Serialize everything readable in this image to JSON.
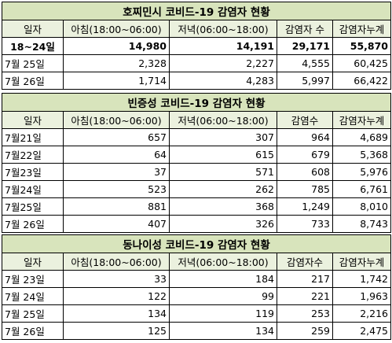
{
  "table1": {
    "title": "호찌민시 코비드-19 감염자 현황",
    "headers": [
      "일자",
      "아침(18:00~06:00)",
      "저녁(06:00~18:00)",
      "감염자 수",
      "감염자누계"
    ],
    "rows": [
      [
        "18~24일",
        "14,980",
        "14,191",
        "29,171",
        "55,870"
      ],
      [
        "7월 25일",
        "2,328",
        "2,227",
        "4,555",
        "60,425"
      ],
      [
        "7월 26일",
        "1,714",
        "4,283",
        "5,997",
        "66,422"
      ]
    ]
  },
  "table2": {
    "title": "빈증성 코비드-19 감염자 현황",
    "headers": [
      "일자",
      "아침(18:00~06:00)",
      "저녁(06:00~18:00)",
      "감염수",
      "감염자누계"
    ],
    "rows": [
      [
        "7월21일",
        "657",
        "307",
        "964",
        "4,689"
      ],
      [
        "7월22일",
        "64",
        "615",
        "679",
        "5,368"
      ],
      [
        "7월23일",
        "37",
        "571",
        "608",
        "5,976"
      ],
      [
        "7월24일",
        "523",
        "262",
        "785",
        "6,761"
      ],
      [
        "7월25일",
        "881",
        "368",
        "1,249",
        "8,010"
      ],
      [
        "7월 26일",
        "407",
        "326",
        "733",
        "8,743"
      ]
    ]
  },
  "table3": {
    "title": "동나이성 코비드-19 감염자 현황",
    "headers": [
      "일자",
      "아침(18:00~06:00)",
      "저녁(06:00~18:00)",
      "감염자수",
      "감염자누계"
    ],
    "rows": [
      [
        "7월 23일",
        "33",
        "184",
        "217",
        "1,742"
      ],
      [
        "7월 24일",
        "122",
        "99",
        "221",
        "1,963"
      ],
      [
        "7월 25일",
        "134",
        "119",
        "253",
        "2,216"
      ],
      [
        "7월 26일",
        "125",
        "134",
        "259",
        "2,475"
      ]
    ]
  },
  "colors": {
    "title_fill": "#d8e4bc",
    "header_fill": "#ebf1de",
    "border": "#000000"
  }
}
